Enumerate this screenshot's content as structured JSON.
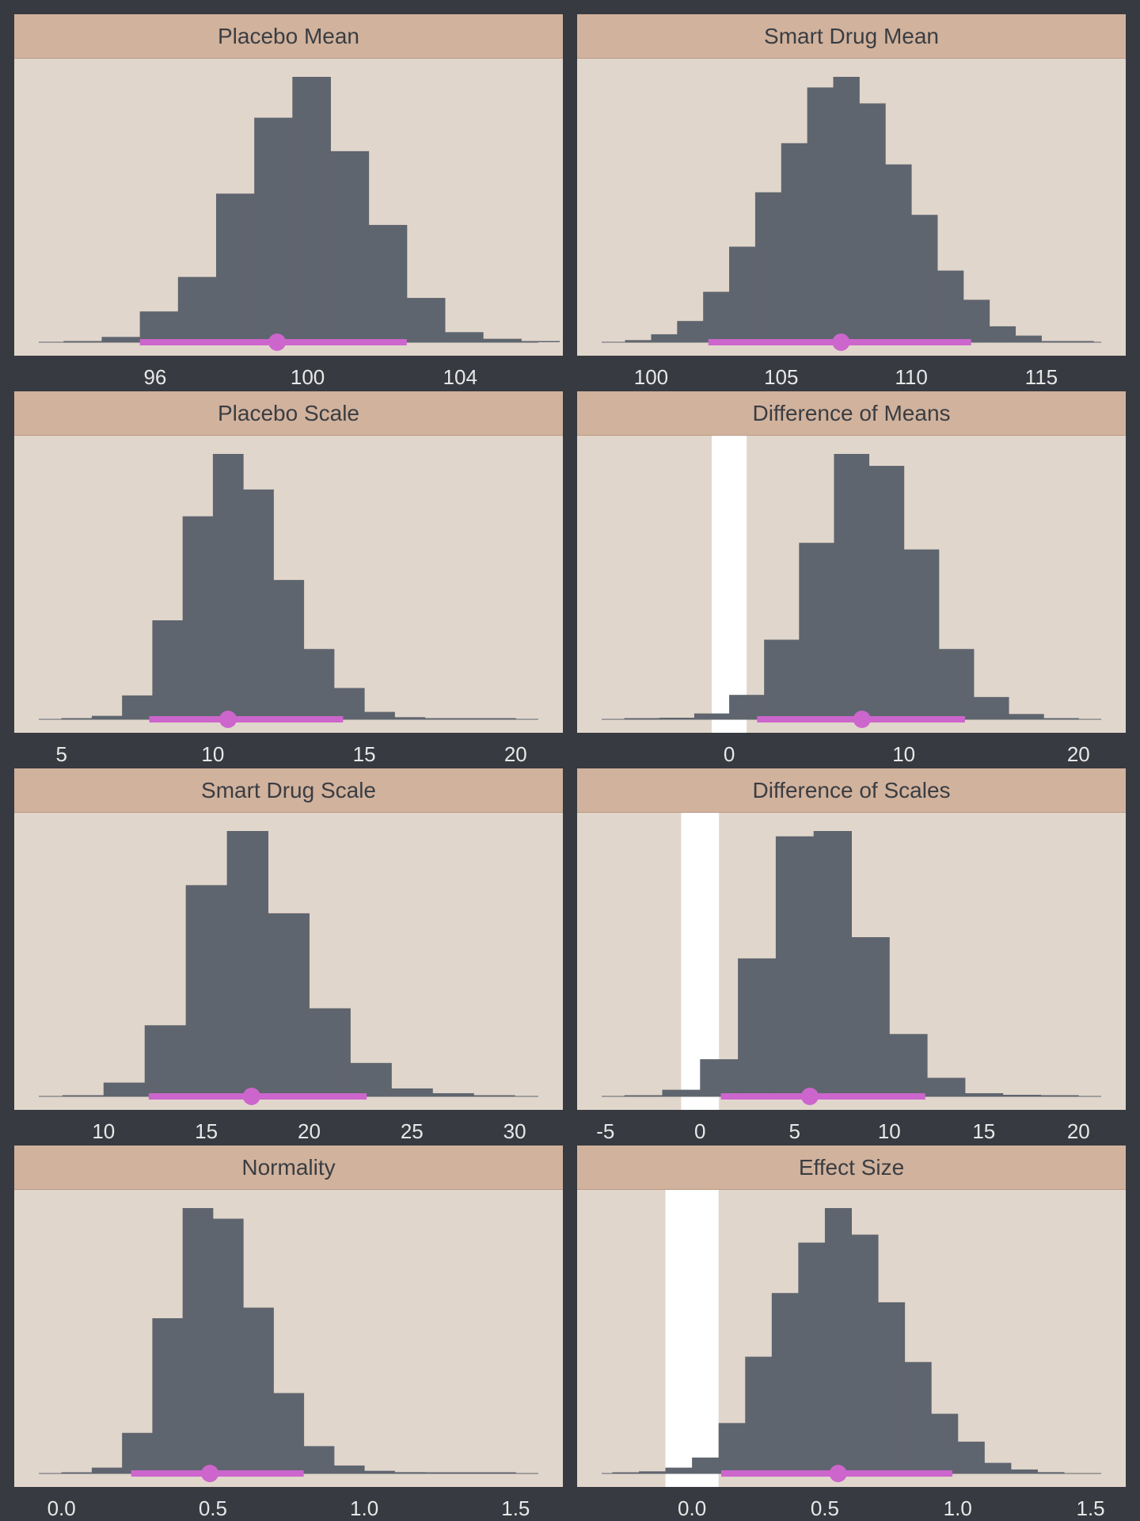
{
  "colors": {
    "background": "#373a40",
    "panel": "#e1d6cc",
    "strip": "#d1b29d",
    "bars": "#5f656e",
    "rope": "#ffffff",
    "interval": "#cc66cc",
    "tick_text": "#e8e8e8",
    "title_text": "#3a3d42"
  },
  "chart_data": [
    {
      "type": "bar",
      "title": "Placebo Mean",
      "xlim": [
        92.95,
        106.05
      ],
      "ticks": [
        96,
        100,
        104
      ],
      "tick_labels": [
        "96",
        "100",
        "104"
      ],
      "bins": [
        {
          "x0": 93.6,
          "x1": 94.6,
          "y": 0.004
        },
        {
          "x0": 94.6,
          "x1": 95.6,
          "y": 0.02
        },
        {
          "x0": 95.6,
          "x1": 96.6,
          "y": 0.116
        },
        {
          "x0": 96.6,
          "x1": 97.6,
          "y": 0.246
        },
        {
          "x0": 97.6,
          "x1": 98.6,
          "y": 0.56
        },
        {
          "x0": 98.6,
          "x1": 99.6,
          "y": 0.846
        },
        {
          "x0": 99.6,
          "x1": 100.6,
          "y": 1.0
        },
        {
          "x0": 100.6,
          "x1": 101.6,
          "y": 0.72
        },
        {
          "x0": 101.6,
          "x1": 102.6,
          "y": 0.442
        },
        {
          "x0": 102.6,
          "x1": 103.6,
          "y": 0.167
        },
        {
          "x0": 103.6,
          "x1": 104.6,
          "y": 0.038
        },
        {
          "x0": 104.6,
          "x1": 105.6,
          "y": 0.013
        },
        {
          "x0": 105.6,
          "x1": 106.6,
          "y": 0.004
        }
      ],
      "interval": [
        95.6,
        102.6
      ],
      "point": 99.2,
      "rope": null
    },
    {
      "type": "bar",
      "title": "Smart Drug Mean",
      "xlim": [
        98.1,
        117.3
      ],
      "ticks": [
        100,
        105,
        110,
        115
      ],
      "tick_labels": [
        "100",
        "105",
        "110",
        "115"
      ],
      "bins": [
        {
          "x0": 99.0,
          "x1": 100.0,
          "y": 0.008
        },
        {
          "x0": 100.0,
          "x1": 101.0,
          "y": 0.03
        },
        {
          "x0": 101.0,
          "x1": 102.0,
          "y": 0.08
        },
        {
          "x0": 102.0,
          "x1": 103.0,
          "y": 0.19
        },
        {
          "x0": 103.0,
          "x1": 104.0,
          "y": 0.36
        },
        {
          "x0": 104.0,
          "x1": 105.0,
          "y": 0.565
        },
        {
          "x0": 105.0,
          "x1": 106.0,
          "y": 0.75
        },
        {
          "x0": 106.0,
          "x1": 107.0,
          "y": 0.96
        },
        {
          "x0": 107.0,
          "x1": 108.0,
          "y": 1.0
        },
        {
          "x0": 108.0,
          "x1": 109.0,
          "y": 0.9
        },
        {
          "x0": 109.0,
          "x1": 110.0,
          "y": 0.67
        },
        {
          "x0": 110.0,
          "x1": 111.0,
          "y": 0.48
        },
        {
          "x0": 111.0,
          "x1": 112.0,
          "y": 0.27
        },
        {
          "x0": 112.0,
          "x1": 113.0,
          "y": 0.16
        },
        {
          "x0": 113.0,
          "x1": 114.0,
          "y": 0.06
        },
        {
          "x0": 114.0,
          "x1": 115.0,
          "y": 0.025
        },
        {
          "x0": 115.0,
          "x1": 116.0,
          "y": 0.004
        },
        {
          "x0": 116.0,
          "x1": 117.0,
          "y": 0.004
        }
      ],
      "interval": [
        102.2,
        112.3
      ],
      "point": 107.3,
      "rope": null
    },
    {
      "type": "bar",
      "title": "Placebo Scale",
      "xlim": [
        4.25,
        20.75
      ],
      "ticks": [
        5,
        10,
        15,
        20
      ],
      "tick_labels": [
        "5",
        "10",
        "15",
        "20"
      ],
      "bins": [
        {
          "x0": 5.0,
          "x1": 6.0,
          "y": 0.002
        },
        {
          "x0": 6.0,
          "x1": 7.0,
          "y": 0.013
        },
        {
          "x0": 7.0,
          "x1": 8.0,
          "y": 0.09
        },
        {
          "x0": 8.0,
          "x1": 9.0,
          "y": 0.373
        },
        {
          "x0": 9.0,
          "x1": 10.0,
          "y": 0.765
        },
        {
          "x0": 10.0,
          "x1": 11.0,
          "y": 1.0
        },
        {
          "x0": 11.0,
          "x1": 12.0,
          "y": 0.866
        },
        {
          "x0": 12.0,
          "x1": 13.0,
          "y": 0.525
        },
        {
          "x0": 13.0,
          "x1": 14.0,
          "y": 0.265
        },
        {
          "x0": 14.0,
          "x1": 15.0,
          "y": 0.118
        },
        {
          "x0": 15.0,
          "x1": 16.0,
          "y": 0.028
        },
        {
          "x0": 16.0,
          "x1": 17.0,
          "y": 0.008
        },
        {
          "x0": 17.0,
          "x1": 18.0,
          "y": 0.003
        },
        {
          "x0": 18.0,
          "x1": 19.0,
          "y": 0.002
        },
        {
          "x0": 19.0,
          "x1": 20.0,
          "y": 0.001
        }
      ],
      "interval": [
        7.9,
        14.3
      ],
      "point": 10.5,
      "rope": null
    },
    {
      "type": "bar",
      "title": "Difference of Means",
      "xlim": [
        -7.3,
        21.3
      ],
      "ticks": [
        0,
        10,
        20
      ],
      "tick_labels": [
        "0",
        "10",
        "20"
      ],
      "bins": [
        {
          "x0": -6.0,
          "x1": -4.0,
          "y": 0.002
        },
        {
          "x0": -4.0,
          "x1": -2.0,
          "y": 0.006
        },
        {
          "x0": -2.0,
          "x1": 0.0,
          "y": 0.022
        },
        {
          "x0": 0.0,
          "x1": 2.0,
          "y": 0.092
        },
        {
          "x0": 2.0,
          "x1": 4.0,
          "y": 0.3
        },
        {
          "x0": 4.0,
          "x1": 6.0,
          "y": 0.665
        },
        {
          "x0": 6.0,
          "x1": 8.0,
          "y": 1.0
        },
        {
          "x0": 8.0,
          "x1": 10.0,
          "y": 0.955
        },
        {
          "x0": 10.0,
          "x1": 12.0,
          "y": 0.64
        },
        {
          "x0": 12.0,
          "x1": 14.0,
          "y": 0.265
        },
        {
          "x0": 14.0,
          "x1": 16.0,
          "y": 0.084
        },
        {
          "x0": 16.0,
          "x1": 18.0,
          "y": 0.02
        },
        {
          "x0": 18.0,
          "x1": 20.0,
          "y": 0.004
        }
      ],
      "interval": [
        1.6,
        13.5
      ],
      "point": 7.6,
      "rope": [
        -1,
        1
      ]
    },
    {
      "type": "bar",
      "title": "Smart Drug Scale",
      "xlim": [
        6.85,
        31.15
      ],
      "ticks": [
        10,
        15,
        20,
        25,
        30
      ],
      "tick_labels": [
        "10",
        "15",
        "20",
        "25",
        "30"
      ],
      "bins": [
        {
          "x0": 8.0,
          "x1": 10.0,
          "y": 0.004
        },
        {
          "x0": 10.0,
          "x1": 12.0,
          "y": 0.052
        },
        {
          "x0": 12.0,
          "x1": 14.0,
          "y": 0.268
        },
        {
          "x0": 14.0,
          "x1": 16.0,
          "y": 0.796
        },
        {
          "x0": 16.0,
          "x1": 18.0,
          "y": 1.0
        },
        {
          "x0": 18.0,
          "x1": 20.0,
          "y": 0.69
        },
        {
          "x0": 20.0,
          "x1": 22.0,
          "y": 0.332
        },
        {
          "x0": 22.0,
          "x1": 24.0,
          "y": 0.126
        },
        {
          "x0": 24.0,
          "x1": 26.0,
          "y": 0.03
        },
        {
          "x0": 26.0,
          "x1": 28.0,
          "y": 0.012
        },
        {
          "x0": 28.0,
          "x1": 30.0,
          "y": 0.002
        }
      ],
      "interval": [
        12.2,
        22.8
      ],
      "point": 17.2,
      "rope": null
    },
    {
      "type": "bar",
      "title": "Difference of Scales",
      "xlim": [
        -5.2,
        21.2
      ],
      "ticks": [
        -5,
        0,
        5,
        10,
        15,
        20
      ],
      "tick_labels": [
        "-5",
        "0",
        "5",
        "10",
        "15",
        "20"
      ],
      "bins": [
        {
          "x0": -4.0,
          "x1": -2.0,
          "y": 0.004
        },
        {
          "x0": -2.0,
          "x1": 0.0,
          "y": 0.025
        },
        {
          "x0": 0.0,
          "x1": 2.0,
          "y": 0.14
        },
        {
          "x0": 2.0,
          "x1": 4.0,
          "y": 0.52
        },
        {
          "x0": 4.0,
          "x1": 6.0,
          "y": 0.98
        },
        {
          "x0": 6.0,
          "x1": 8.0,
          "y": 1.0
        },
        {
          "x0": 8.0,
          "x1": 10.0,
          "y": 0.6
        },
        {
          "x0": 10.0,
          "x1": 12.0,
          "y": 0.235
        },
        {
          "x0": 12.0,
          "x1": 14.0,
          "y": 0.07
        },
        {
          "x0": 14.0,
          "x1": 16.0,
          "y": 0.012
        },
        {
          "x0": 16.0,
          "x1": 18.0,
          "y": 0.006
        },
        {
          "x0": 18.0,
          "x1": 20.0,
          "y": 0.003
        }
      ],
      "interval": [
        1.1,
        11.9
      ],
      "point": 5.8,
      "rope": [
        -1,
        1
      ]
    },
    {
      "type": "bar",
      "title": "Normality",
      "xlim": [
        -0.075,
        1.575
      ],
      "ticks": [
        0.0,
        0.5,
        1.0,
        1.5
      ],
      "tick_labels": [
        "0.0",
        "0.5",
        "1.0",
        "1.5"
      ],
      "bins": [
        {
          "x0": 0.0,
          "x1": 0.1,
          "y": 0.003
        },
        {
          "x0": 0.1,
          "x1": 0.2,
          "y": 0.022
        },
        {
          "x0": 0.2,
          "x1": 0.3,
          "y": 0.153
        },
        {
          "x0": 0.3,
          "x1": 0.4,
          "y": 0.585
        },
        {
          "x0": 0.4,
          "x1": 0.5,
          "y": 1.0
        },
        {
          "x0": 0.5,
          "x1": 0.6,
          "y": 0.96
        },
        {
          "x0": 0.6,
          "x1": 0.7,
          "y": 0.625
        },
        {
          "x0": 0.7,
          "x1": 0.8,
          "y": 0.303
        },
        {
          "x0": 0.8,
          "x1": 0.9,
          "y": 0.103
        },
        {
          "x0": 0.9,
          "x1": 1.0,
          "y": 0.03
        },
        {
          "x0": 1.0,
          "x1": 1.1,
          "y": 0.01
        },
        {
          "x0": 1.1,
          "x1": 1.2,
          "y": 0.005
        },
        {
          "x0": 1.2,
          "x1": 1.3,
          "y": 0.002
        },
        {
          "x0": 1.3,
          "x1": 1.4,
          "y": 0.001
        },
        {
          "x0": 1.4,
          "x1": 1.5,
          "y": 0.002
        }
      ],
      "interval": [
        0.23,
        0.8
      ],
      "point": 0.49,
      "rope": null
    },
    {
      "type": "bar",
      "title": "Effect Size",
      "xlim": [
        -0.34,
        1.54
      ],
      "ticks": [
        0.0,
        0.5,
        1.0,
        1.5
      ],
      "tick_labels": [
        "0.0",
        "0.5",
        "1.0",
        "1.5"
      ],
      "bins": [
        {
          "x0": -0.3,
          "x1": -0.2,
          "y": 0.003
        },
        {
          "x0": -0.2,
          "x1": -0.1,
          "y": 0.008
        },
        {
          "x0": -0.1,
          "x1": 0.0,
          "y": 0.022
        },
        {
          "x0": 0.0,
          "x1": 0.1,
          "y": 0.06
        },
        {
          "x0": 0.1,
          "x1": 0.2,
          "y": 0.19
        },
        {
          "x0": 0.2,
          "x1": 0.3,
          "y": 0.44
        },
        {
          "x0": 0.3,
          "x1": 0.4,
          "y": 0.68
        },
        {
          "x0": 0.4,
          "x1": 0.5,
          "y": 0.87
        },
        {
          "x0": 0.5,
          "x1": 0.6,
          "y": 1.0
        },
        {
          "x0": 0.6,
          "x1": 0.7,
          "y": 0.9
        },
        {
          "x0": 0.7,
          "x1": 0.8,
          "y": 0.645
        },
        {
          "x0": 0.8,
          "x1": 0.9,
          "y": 0.42
        },
        {
          "x0": 0.9,
          "x1": 1.0,
          "y": 0.225
        },
        {
          "x0": 1.0,
          "x1": 1.1,
          "y": 0.12
        },
        {
          "x0": 1.1,
          "x1": 1.2,
          "y": 0.04
        },
        {
          "x0": 1.2,
          "x1": 1.3,
          "y": 0.015
        },
        {
          "x0": 1.3,
          "x1": 1.4,
          "y": 0.005
        }
      ],
      "interval": [
        0.11,
        0.98
      ],
      "point": 0.55,
      "rope": [
        -0.1,
        0.1
      ]
    }
  ]
}
